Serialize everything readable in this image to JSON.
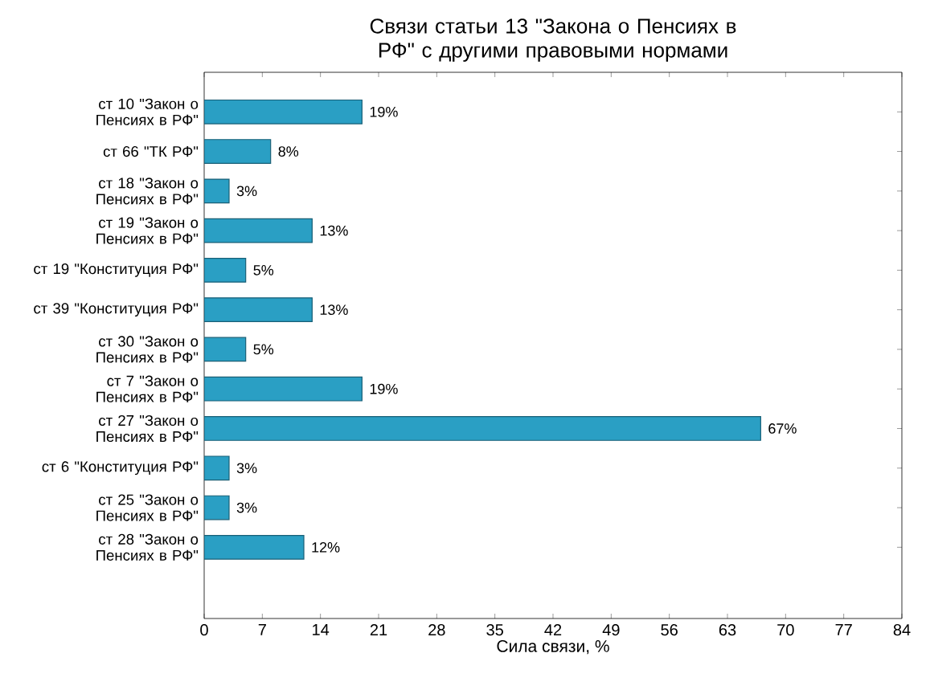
{
  "chart_data": {
    "type": "bar",
    "orientation": "horizontal",
    "title": "Связи статьи 13 \"Закона о Пенсиях в РФ\" с другими правовыми нормами",
    "xlabel": "Сила связи, %",
    "categories": [
      "ст 10 \"Закон о Пенсиях в РФ\"",
      "ст 66 \"ТК РФ\"",
      "ст 18 \"Закон о Пенсиях в РФ\"",
      "ст 19 \"Закон о Пенсиях в РФ\"",
      "ст 19 \"Конституция РФ\"",
      "ст 39 \"Конституция РФ\"",
      "ст 30 \"Закон о Пенсиях в РФ\"",
      "ст 7 \"Закон о Пенсиях в РФ\"",
      "ст 27 \"Закон о Пенсиях в РФ\"",
      "ст 6 \"Конституция РФ\"",
      "ст 25 \"Закон о Пенсиях в РФ\"",
      "ст 28 \"Закон о Пенсиях в РФ\""
    ],
    "values": [
      19,
      8,
      3,
      13,
      5,
      13,
      5,
      19,
      67,
      3,
      3,
      12
    ],
    "value_labels": [
      "19%",
      "8%",
      "3%",
      "13%",
      "5%",
      "13%",
      "5%",
      "19%",
      "67%",
      "3%",
      "3%",
      "12%"
    ],
    "color": "#2a9fc4",
    "xlim": [
      0,
      84
    ],
    "xticks": [
      0,
      7,
      14,
      21,
      28,
      35,
      42,
      49,
      56,
      63,
      70,
      77,
      84
    ],
    "grid": false
  }
}
